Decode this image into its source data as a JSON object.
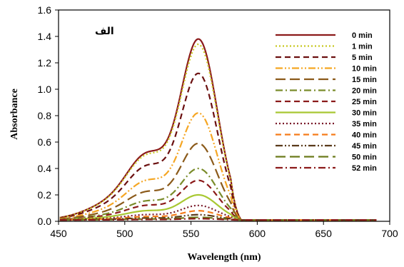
{
  "chart_data": {
    "type": "line",
    "panel_label": "الف",
    "xlabel": "Wavelength (nm)",
    "ylabel": "Absorbance",
    "xlim": [
      450,
      700
    ],
    "ylim": [
      0,
      1.6
    ],
    "x_ticks": [
      450,
      500,
      550,
      600,
      650,
      700
    ],
    "y_ticks": [
      "0.0",
      "0.2",
      "0.4",
      "0.6",
      "0.8",
      "1.0",
      "1.2",
      "1.4",
      "1.6"
    ],
    "grid": false,
    "legend_position": "top-right",
    "baseline": 0.01,
    "peak_wavelength": 555,
    "series": [
      {
        "name": "0 min",
        "peak": 1.38,
        "color": "#8b1a1a",
        "dash": "solid"
      },
      {
        "name": "1 min",
        "peak": 1.34,
        "color": "#c8c820",
        "dash": "dotted"
      },
      {
        "name": "5 min",
        "peak": 1.12,
        "color": "#6b1010",
        "dash": "dashed"
      },
      {
        "name": "10 min",
        "peak": 0.82,
        "color": "#f5a623",
        "dash": "dashdotdot"
      },
      {
        "name": "15 min",
        "peak": 0.59,
        "color": "#8b5a1a",
        "dash": "longdash"
      },
      {
        "name": "20 min",
        "peak": 0.4,
        "color": "#7a8c2a",
        "dash": "dashdot"
      },
      {
        "name": "25 min",
        "peak": 0.31,
        "color": "#8b1a1a",
        "dash": "dashed"
      },
      {
        "name": "30 min",
        "peak": 0.2,
        "color": "#a8c832",
        "dash": "solid"
      },
      {
        "name": "35 min",
        "peak": 0.12,
        "color": "#7a1a2a",
        "dash": "dotted"
      },
      {
        "name": "40 min",
        "peak": 0.08,
        "color": "#f57c1a",
        "dash": "dashed"
      },
      {
        "name": "45 min",
        "peak": 0.05,
        "color": "#5a3a1a",
        "dash": "dashdotdot"
      },
      {
        "name": "50 min",
        "peak": 0.03,
        "color": "#6b7a1a",
        "dash": "longdash"
      },
      {
        "name": "52 min",
        "peak": 0.02,
        "color": "#8b1a1a",
        "dash": "dashdot"
      }
    ]
  }
}
